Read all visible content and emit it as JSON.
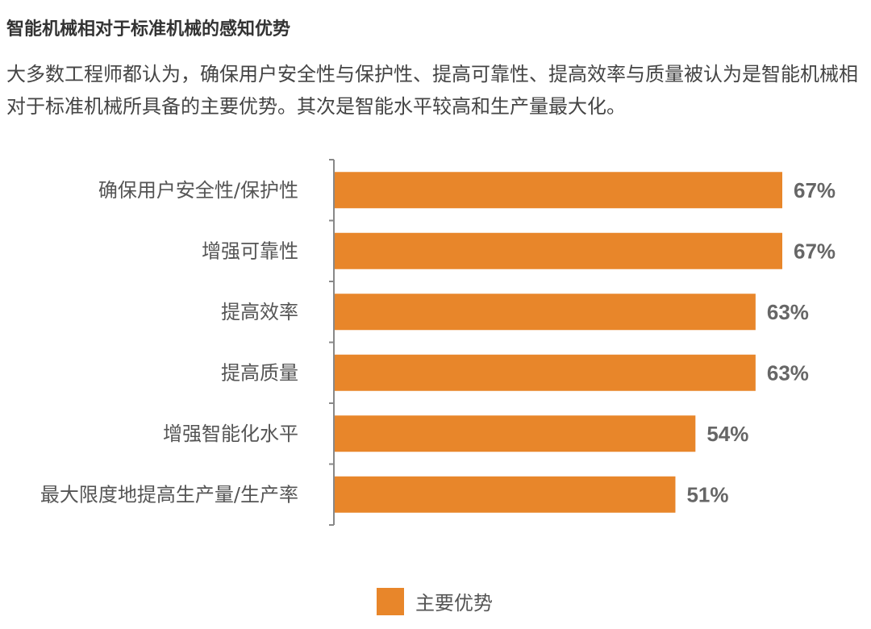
{
  "title": "智能机械相对于标准机械的感知优势",
  "subtitle": "大多数工程师都认为，确保用户安全性与保护性、提高可靠性、提高效率与质量被认为是智能机械相对于标准机械所具备的主要优势。其次是智能水平较高和生产量最大化。",
  "colors": {
    "bar": "#E8862A",
    "axis": "#888888",
    "value_label": "#666666",
    "category_label": "#555555"
  },
  "chart_data": {
    "type": "bar",
    "orientation": "horizontal",
    "categories": [
      "确保用户安全性/保护性",
      "增强可靠性",
      "提高效率",
      "提高质量",
      "增强智能化水平",
      "最大限度地提高生产量/生产率"
    ],
    "series": [
      {
        "name": "主要优势",
        "values": [
          67,
          67,
          63,
          63,
          54,
          51
        ]
      }
    ],
    "value_labels": [
      "67%",
      "67%",
      "63%",
      "63%",
      "54%",
      "51%"
    ],
    "unit": "%",
    "xlim": [
      0,
      67
    ],
    "grid": false,
    "legend_position": "bottom-center"
  },
  "legend": {
    "label": "主要优势"
  }
}
